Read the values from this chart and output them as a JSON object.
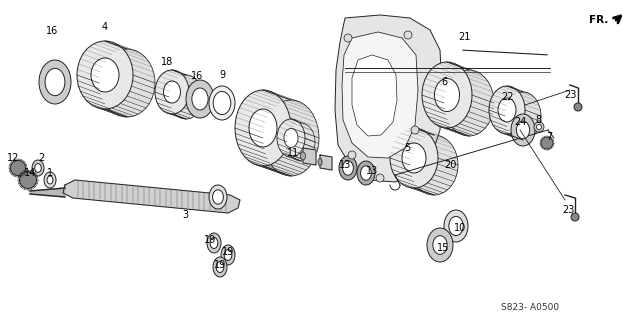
{
  "background_color": "#ffffff",
  "diagram_code": "S823- A0500",
  "fr_label": "FR.",
  "fig_width": 6.4,
  "fig_height": 3.19,
  "dpi": 100,
  "line_color": "#222222",
  "gray_fill": "#aaaaaa",
  "light_gray": "#dddddd",
  "labels": [
    [
      52,
      31,
      "16"
    ],
    [
      105,
      27,
      "4"
    ],
    [
      167,
      62,
      "18"
    ],
    [
      197,
      76,
      "16"
    ],
    [
      222,
      75,
      "9"
    ],
    [
      13,
      158,
      "12"
    ],
    [
      41,
      158,
      "2"
    ],
    [
      30,
      173,
      "14"
    ],
    [
      50,
      173,
      "1"
    ],
    [
      185,
      215,
      "3"
    ],
    [
      293,
      153,
      "11"
    ],
    [
      345,
      165,
      "13"
    ],
    [
      372,
      171,
      "13"
    ],
    [
      407,
      148,
      "5"
    ],
    [
      210,
      240,
      "19"
    ],
    [
      228,
      252,
      "19"
    ],
    [
      220,
      265,
      "19"
    ],
    [
      460,
      228,
      "10"
    ],
    [
      443,
      248,
      "15"
    ],
    [
      464,
      37,
      "21"
    ],
    [
      444,
      82,
      "6"
    ],
    [
      508,
      97,
      "22"
    ],
    [
      520,
      122,
      "24"
    ],
    [
      538,
      120,
      "8"
    ],
    [
      549,
      137,
      "7"
    ],
    [
      450,
      165,
      "20"
    ],
    [
      570,
      95,
      "23"
    ],
    [
      568,
      210,
      "23"
    ]
  ]
}
